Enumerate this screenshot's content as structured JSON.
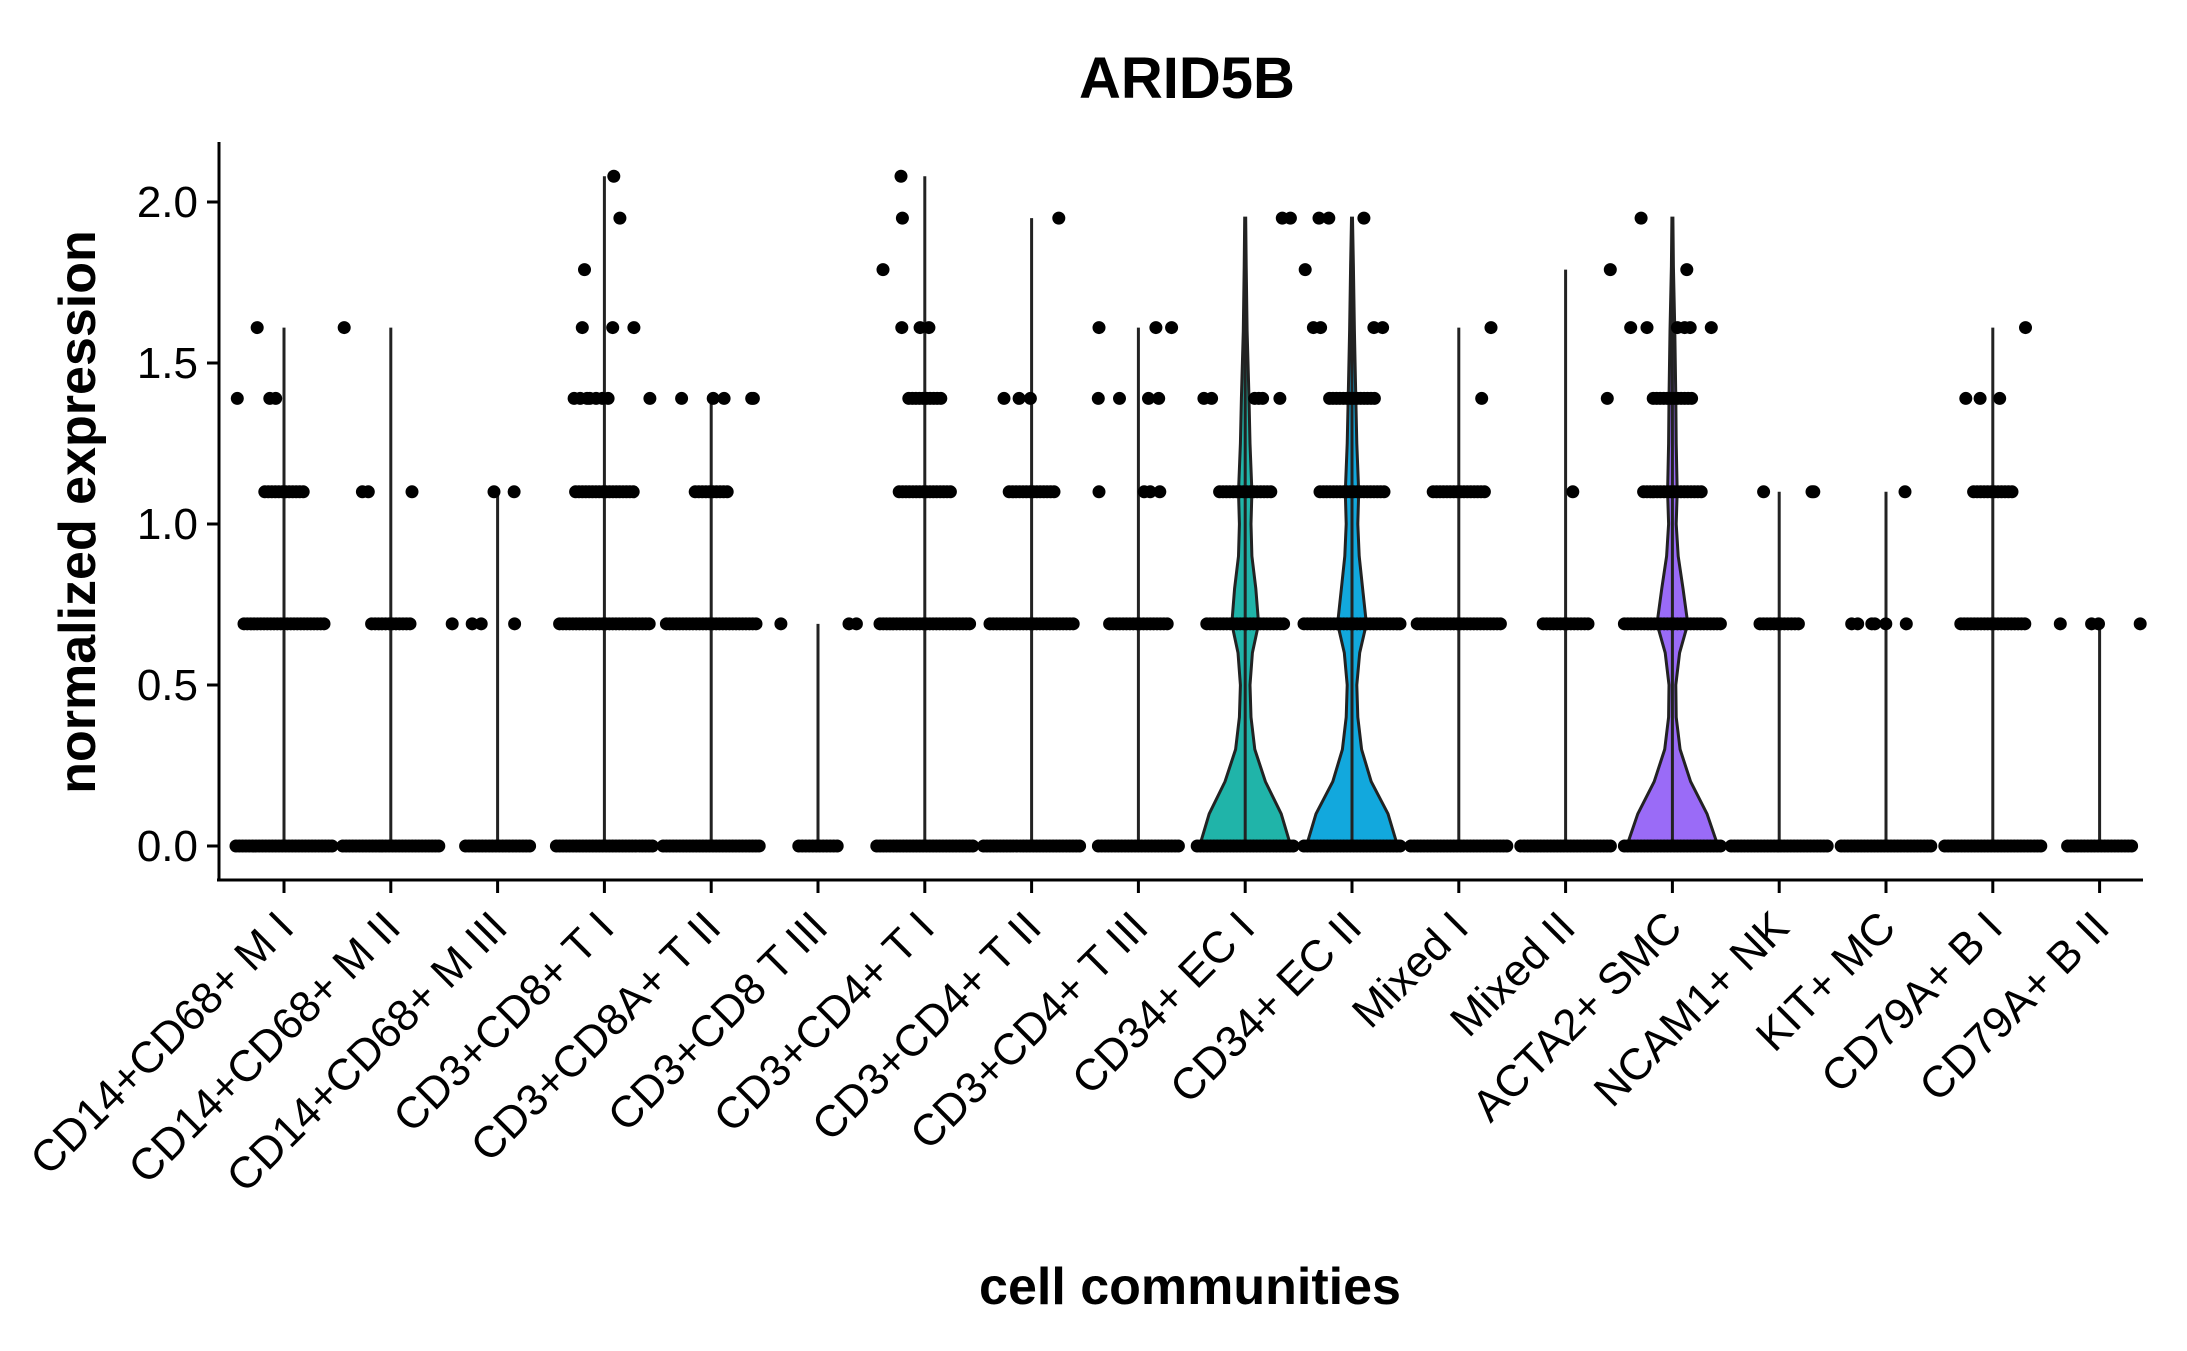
{
  "chart_data": {
    "type": "violin",
    "title": "ARID5B",
    "xlabel": "cell communities",
    "ylabel": "normalized expression",
    "ylim": [
      -0.1,
      2.2
    ],
    "yticks": [
      0.0,
      0.5,
      1.0,
      1.5,
      2.0
    ],
    "ytick_labels": [
      "0.0",
      "0.5",
      "1.0",
      "1.5",
      "2.0"
    ],
    "grid": false,
    "legend": "none",
    "expression_levels": [
      0.0,
      0.69,
      1.1,
      1.39,
      1.61,
      1.79,
      1.95,
      2.08
    ],
    "categories": [
      {
        "name": "CD14+CD68+ M I",
        "color": "#F8766D",
        "max": 1.61,
        "points": [
          [
            0.0,
            30
          ],
          [
            0.69,
            25
          ],
          [
            1.1,
            12
          ],
          [
            1.39,
            3
          ],
          [
            1.61,
            1
          ]
        ]
      },
      {
        "name": "CD14+CD68+ M II",
        "color": "#EA8331",
        "max": 1.61,
        "points": [
          [
            0.0,
            30
          ],
          [
            0.69,
            12
          ],
          [
            1.1,
            3
          ],
          [
            1.61,
            1
          ]
        ]
      },
      {
        "name": "CD14+CD68+ M III",
        "color": "#D89000",
        "max": 1.1,
        "points": [
          [
            0.0,
            20
          ],
          [
            0.69,
            4
          ],
          [
            1.1,
            2
          ]
        ]
      },
      {
        "name": "CD3+CD8+ T I",
        "color": "#C09B00",
        "max": 2.08,
        "points": [
          [
            0.0,
            30
          ],
          [
            0.69,
            28
          ],
          [
            1.1,
            18
          ],
          [
            1.39,
            8
          ],
          [
            1.61,
            3
          ],
          [
            1.79,
            1
          ],
          [
            1.95,
            1
          ],
          [
            2.08,
            1
          ]
        ]
      },
      {
        "name": "CD3+CD8A+ T II",
        "color": "#A3A500",
        "max": 1.39,
        "points": [
          [
            0.0,
            30
          ],
          [
            0.69,
            28
          ],
          [
            1.1,
            10
          ],
          [
            1.39,
            5
          ]
        ]
      },
      {
        "name": "CD3+CD8 T III",
        "color": "#7CAE00",
        "max": 0.69,
        "points": [
          [
            0.0,
            12
          ],
          [
            0.69,
            3
          ]
        ]
      },
      {
        "name": "CD3+CD4+ T I",
        "color": "#39B600",
        "max": 2.08,
        "points": [
          [
            0.0,
            30
          ],
          [
            0.69,
            28
          ],
          [
            1.1,
            16
          ],
          [
            1.39,
            10
          ],
          [
            1.61,
            3
          ],
          [
            1.79,
            1
          ],
          [
            1.95,
            1
          ],
          [
            2.08,
            1
          ]
        ]
      },
      {
        "name": "CD3+CD4+ T II",
        "color": "#00BB4E",
        "max": 1.95,
        "points": [
          [
            0.0,
            30
          ],
          [
            0.69,
            26
          ],
          [
            1.1,
            14
          ],
          [
            1.39,
            3
          ],
          [
            1.95,
            1
          ]
        ]
      },
      {
        "name": "CD3+CD4+ T III",
        "color": "#00BF7D",
        "max": 1.61,
        "points": [
          [
            0.0,
            25
          ],
          [
            0.69,
            18
          ],
          [
            1.1,
            4
          ],
          [
            1.39,
            4
          ],
          [
            1.61,
            3
          ]
        ]
      },
      {
        "name": "CD34+ EC I",
        "color": "#20B4A9",
        "max": 1.95,
        "points": [
          [
            0.0,
            30
          ],
          [
            0.69,
            24
          ],
          [
            1.1,
            16
          ],
          [
            1.39,
            6
          ],
          [
            1.95,
            2
          ]
        ]
      },
      {
        "name": "CD34+ EC II",
        "color": "#12A8DD",
        "max": 1.95,
        "points": [
          [
            0.0,
            30
          ],
          [
            0.69,
            30
          ],
          [
            1.1,
            20
          ],
          [
            1.39,
            14
          ],
          [
            1.61,
            4
          ],
          [
            1.79,
            1
          ],
          [
            1.95,
            3
          ]
        ]
      },
      {
        "name": "Mixed I",
        "color": "#00A5FF",
        "max": 1.61,
        "points": [
          [
            0.0,
            30
          ],
          [
            0.69,
            26
          ],
          [
            1.1,
            16
          ],
          [
            1.39,
            1
          ],
          [
            1.61,
            1
          ]
        ]
      },
      {
        "name": "Mixed II",
        "color": "#6C9BFF",
        "max": 1.79,
        "points": [
          [
            0.0,
            28
          ],
          [
            0.69,
            14
          ],
          [
            1.1,
            1
          ],
          [
            1.39,
            1
          ],
          [
            1.79,
            1
          ]
        ]
      },
      {
        "name": "ACTA2+ SMC",
        "color": "#9A6BF7",
        "max": 1.95,
        "points": [
          [
            0.0,
            30
          ],
          [
            0.69,
            30
          ],
          [
            1.1,
            18
          ],
          [
            1.39,
            12
          ],
          [
            1.61,
            6
          ],
          [
            1.79,
            1
          ],
          [
            1.95,
            1
          ]
        ]
      },
      {
        "name": "NCAM1+ NK",
        "color": "#C77CFF",
        "max": 1.1,
        "points": [
          [
            0.0,
            30
          ],
          [
            0.69,
            12
          ],
          [
            1.1,
            3
          ]
        ]
      },
      {
        "name": "KIT+ MC",
        "color": "#E76BF3",
        "max": 1.1,
        "points": [
          [
            0.0,
            28
          ],
          [
            0.69,
            6
          ],
          [
            1.1,
            1
          ]
        ]
      },
      {
        "name": "CD79A+ B I",
        "color": "#FA62DB",
        "max": 1.61,
        "points": [
          [
            0.0,
            30
          ],
          [
            0.69,
            20
          ],
          [
            1.1,
            12
          ],
          [
            1.39,
            3
          ],
          [
            1.61,
            1
          ]
        ]
      },
      {
        "name": "CD79A+ B II",
        "color": "#FF62BC",
        "max": 0.69,
        "points": [
          [
            0.0,
            20
          ],
          [
            0.69,
            4
          ]
        ]
      }
    ],
    "violins": [
      {
        "category": "CD34+ EC I",
        "color": "#20B4A9",
        "profile": [
          [
            0.0,
            0.95
          ],
          [
            0.1,
            0.75
          ],
          [
            0.2,
            0.42
          ],
          [
            0.3,
            0.2
          ],
          [
            0.4,
            0.12
          ],
          [
            0.5,
            0.1
          ],
          [
            0.6,
            0.15
          ],
          [
            0.69,
            0.28
          ],
          [
            0.8,
            0.22
          ],
          [
            0.9,
            0.14
          ],
          [
            1.0,
            0.12
          ],
          [
            1.1,
            0.14
          ],
          [
            1.25,
            0.1
          ],
          [
            1.39,
            0.08
          ],
          [
            1.6,
            0.04
          ],
          [
            1.8,
            0.02
          ],
          [
            1.95,
            0.01
          ]
        ]
      },
      {
        "category": "CD34+ EC II",
        "color": "#12A8DD",
        "profile": [
          [
            0.0,
            0.95
          ],
          [
            0.1,
            0.75
          ],
          [
            0.2,
            0.4
          ],
          [
            0.3,
            0.2
          ],
          [
            0.4,
            0.12
          ],
          [
            0.5,
            0.1
          ],
          [
            0.6,
            0.16
          ],
          [
            0.69,
            0.3
          ],
          [
            0.8,
            0.22
          ],
          [
            0.9,
            0.15
          ],
          [
            1.0,
            0.12
          ],
          [
            1.1,
            0.14
          ],
          [
            1.25,
            0.1
          ],
          [
            1.39,
            0.08
          ],
          [
            1.6,
            0.05
          ],
          [
            1.8,
            0.03
          ],
          [
            1.95,
            0.01
          ]
        ]
      },
      {
        "category": "ACTA2+ SMC",
        "color": "#9A6BF7",
        "profile": [
          [
            0.0,
            0.95
          ],
          [
            0.1,
            0.72
          ],
          [
            0.2,
            0.38
          ],
          [
            0.3,
            0.16
          ],
          [
            0.4,
            0.08
          ],
          [
            0.5,
            0.07
          ],
          [
            0.6,
            0.15
          ],
          [
            0.69,
            0.32
          ],
          [
            0.8,
            0.22
          ],
          [
            0.9,
            0.12
          ],
          [
            1.0,
            0.08
          ],
          [
            1.1,
            0.1
          ],
          [
            1.25,
            0.08
          ],
          [
            1.39,
            0.07
          ],
          [
            1.6,
            0.05
          ],
          [
            1.8,
            0.02
          ],
          [
            1.95,
            0.01
          ]
        ]
      }
    ]
  }
}
